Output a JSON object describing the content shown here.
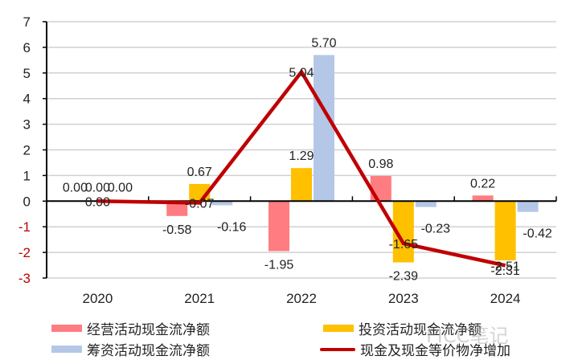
{
  "chart_data": {
    "type": "bar",
    "title": "",
    "xlabel": "",
    "ylabel": "",
    "categories": [
      "2020",
      "2021",
      "2022",
      "2023",
      "2024"
    ],
    "ylim": [
      -3,
      7
    ],
    "yticks": [
      7,
      6,
      5,
      4,
      3,
      2,
      1,
      0,
      -1,
      -2,
      -3
    ],
    "grid": true,
    "legend_position": "bottom",
    "series": [
      {
        "name": "经营活动现金流净额",
        "type": "bar",
        "color": "#FF7C80",
        "values": [
          0.0,
          -0.58,
          -1.95,
          0.98,
          0.22
        ]
      },
      {
        "name": "投资活动现金流净额",
        "type": "bar",
        "color": "#FFC000",
        "values": [
          0.0,
          0.67,
          1.29,
          -2.39,
          -2.31
        ]
      },
      {
        "name": "筹资活动现金流净额",
        "type": "bar",
        "color": "#B4C7E7",
        "values": [
          0.0,
          -0.16,
          5.7,
          -0.23,
          -0.42
        ]
      },
      {
        "name": "现金及现金等价物净增加",
        "type": "line",
        "color": "#C00000",
        "values": [
          0.0,
          -0.07,
          5.04,
          -1.65,
          -2.51
        ]
      }
    ],
    "data_labels": {
      "经营活动现金流净额": [
        "0.00",
        "-0.58",
        "-1.95",
        "0.98",
        "0.22"
      ],
      "投资活动现金流净额": [
        "0.00",
        "0.67",
        "1.29",
        "-2.39",
        "-2.31"
      ],
      "筹资活动现金流净额": [
        "0.00",
        "-0.16",
        "5.70",
        "-0.23",
        "-0.42"
      ],
      "现金及现金等价物净增加": [
        "0.00",
        "-0.07",
        "5.04",
        "-1.65",
        "-2.51"
      ]
    },
    "negative_tick_color": "#C00000"
  },
  "legend": {
    "items": [
      {
        "label": "经营活动现金流净额",
        "kind": "bar",
        "color": "#FF7C80"
      },
      {
        "label": "投资活动现金流净额",
        "kind": "bar",
        "color": "#FFC000"
      },
      {
        "label": "筹资活动现金流净额",
        "kind": "bar",
        "color": "#B4C7E7"
      },
      {
        "label": "现金及现金等价物净增加",
        "kind": "line",
        "color": "#C00000"
      }
    ]
  },
  "watermark": "FICC笔记"
}
